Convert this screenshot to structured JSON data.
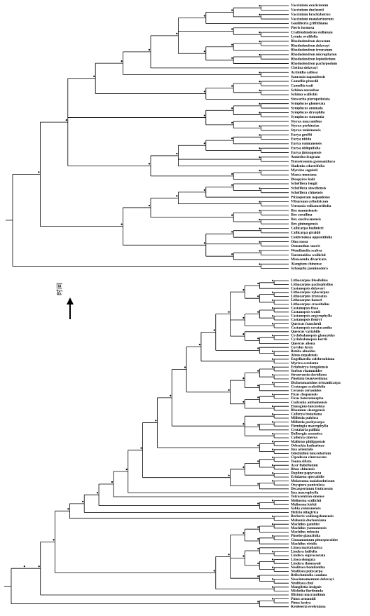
{
  "top_tree": {
    "tips": [
      "Vaccinium exaristatum",
      "Vaccinium duclouxii",
      "Vaccinium brachybotrys",
      "Vaccinium mandarinorum",
      "Gaultheria griffithiana",
      "Pieris formosa",
      "Craibiodendron stellatum",
      "Lyonia ovalifolia",
      "Rhododendron decorum",
      "Rhododendron delavayi",
      "Rhododendron irroratum",
      "Rhododendron microphyton",
      "Rhododendron leptothrium",
      "Rhododendron pachypodum",
      "Clethra delavayi",
      "Actinidia callosa",
      "Saurauia napaulensis",
      "Camellia pitardii",
      "Camellia tsaii",
      "Schima noronhae",
      "Schima wallichii",
      "Stewartia pteropetiolata",
      "Symplocos glomerata",
      "Symplocos anomala",
      "Symplocos dryophila",
      "Symplocos sumuntia",
      "Styrax macranthus",
      "Styrax perkinsiae",
      "Styrax tonkinensis",
      "Eurya groffii",
      "Eurya nitida",
      "Eurya yunnanensis",
      "Eurya obliquifolia",
      "Eurya jintungensis",
      "Anneslea fragrans",
      "Ternstroemia gymnanthera",
      "Sladenia celastrifolia",
      "Myrsine seguinii",
      "Maesa montana",
      "Diospyros kaki",
      "Schefflera fengii",
      "Schefflera shweliensis",
      "Schefflera chinensis",
      "Pittosporum napaulense",
      "Viburnum cylindricum",
      "Vernonia volkameriifolia",
      "Ilex manneiensis",
      "Ilex corallina",
      "Ilex szechwanensis",
      "Ilex gintungensis",
      "Callicarpa bodinieri",
      "Callicarpa giraldii",
      "Colebrookea oppositifolia",
      "Olea rosea",
      "Osmanthus suavis",
      "Wendlandia scabra",
      "Tarennoidea wallichii",
      "Mussaenda divaricata",
      "Alangium chinense",
      "Schoepfia jasminodora"
    ]
  },
  "bottom_tree": {
    "arrow_label": "时间",
    "tips": [
      "Lithocarpus litseifolius",
      "Lithocarpus pachyphyllus",
      "Castanopsis delavayi",
      "Lithocarpus xylocarpus",
      "Lithocarpus truncatus",
      "Lithocarpus hancei",
      "Lithocarpus crassifolius",
      "Castanopsis fissa",
      "Castanopsis wattii",
      "Castanopsis argyrophylla",
      "Castanopsis fleuryi",
      "Quercus franchetii",
      "Castanopsis ceratacantha",
      "Quercus variabilis",
      "Cyclobalanopsis glaucoides",
      "Cyclobalanopsis kerrii",
      "Quercus aliena",
      "Corylus ferox",
      "Betula alnoides",
      "Alnus nepalensis",
      "Engelhardia colebrookiana",
      "Myrica esculenta",
      "Eriobotrya bengalensis",
      "Sorbus rhamnoides",
      "Stranvaesia davidiana",
      "Photinia beauverdiana",
      "Dichotomanthus tristaniicarpa",
      "Crataegus scabrifolia",
      "Cerasus cerasoides",
      "Ficus chapaensis",
      "Ficus heteromorpha",
      "Cudrania amboinensis",
      "Elaeagnus lanceolata",
      "Rhamnus sizangensis",
      "Callerya bonatiana",
      "Millettia pulchra",
      "Millettia pachycarpa",
      "Flemingia macrophylla",
      "Crotalaria pallida",
      "Dalbergia assamica",
      "Callerya cinerea",
      "Mallotus philippensis",
      "Osbeckia katharinae",
      "Itea orientalis",
      "Glochidion lanceolarium",
      "Cipadessa cinerascens",
      "Toona ciliata",
      "Acer flabellatum",
      "Rhus chinensis",
      "Daphne papyracea",
      "Eriolaena spectabilis",
      "Melastoma malabathricum",
      "Oxyspora paniculata",
      "Decaspermum fruticosum",
      "Itea macrophylla",
      "Tetracentron sinense",
      "Meliosma wallichii",
      "Meliosma kirkii",
      "Sabia yunnanensis",
      "Helicia nilagirica",
      "Berberis wuliangshanensis",
      "Mahonia duclouxiana",
      "Machilus gamblei",
      "Machilus yunnanensis",
      "Machilus robusta",
      "Phoebe glaucifolia",
      "Cinnamomum pittosporoides",
      "Machilus viridis",
      "Litsea martabanica",
      "Lindera latifolia",
      "Lindera supracostata",
      "Litsea elongata",
      "Lindera thomsonii",
      "Neolitsea homilantha",
      "Neolitsea polycarpa",
      "Beilschmiedia caudata",
      "Neocinnamomum delavayi",
      "Neolitsea chui",
      "Manglietia insignis",
      "Michelia floribunda",
      "Illicium macranthum",
      "Pinus armandii",
      "Pinus kesiya",
      "Keteleeria evelyniana"
    ]
  }
}
